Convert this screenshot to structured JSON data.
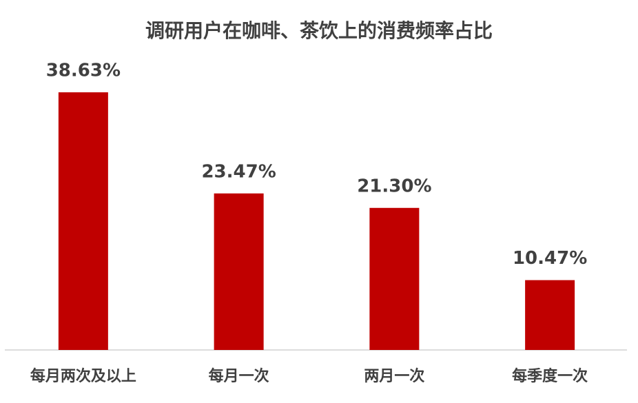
{
  "chart_data": {
    "type": "bar",
    "title": "调研用户在咖啡、茶饮上的消费频率占比",
    "categories": [
      "每月两次及以上",
      "每月一次",
      "两月一次",
      "每季度一次"
    ],
    "values": [
      38.63,
      23.47,
      21.3,
      10.47
    ],
    "value_labels": [
      "38.63%",
      "23.47%",
      "21.30%",
      "10.47%"
    ],
    "color": "#c00000",
    "grid": false
  }
}
